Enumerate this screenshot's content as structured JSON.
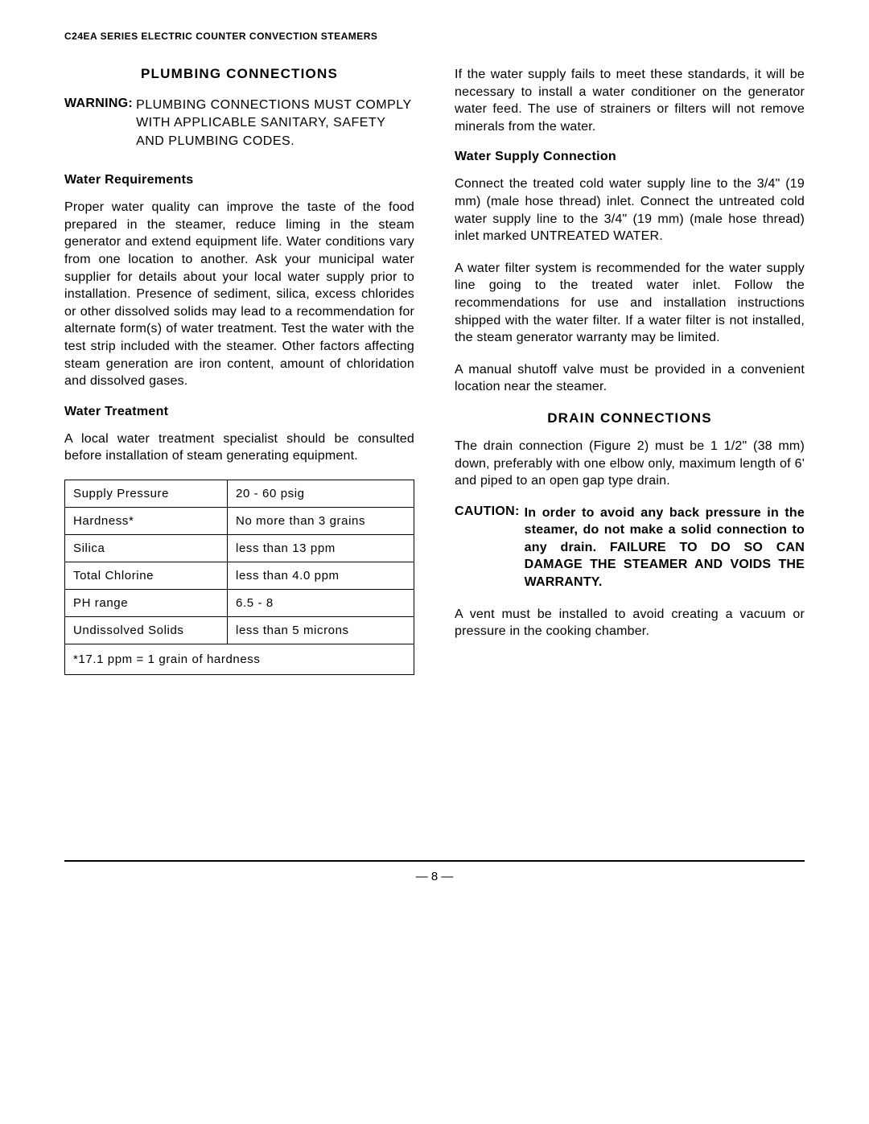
{
  "header": {
    "productLine": "C24EA SERIES ELECTRIC COUNTER CONVECTION STEAMERS"
  },
  "leftColumn": {
    "plumbingTitle": "PLUMBING CONNECTIONS",
    "warningLabel": "WARNING:",
    "warningText": "PLUMBING CONNECTIONS MUST COMPLY WITH APPLICABLE SANITARY, SAFETY AND PLUMBING CODES.",
    "waterReqHeading": "Water Requirements",
    "waterReqText": "Proper water quality can improve the taste of the food prepared in the steamer, reduce liming in the steam generator and extend equipment life. Water conditions vary from one location to another. Ask your municipal water supplier for details about your local water supply prior to installation. Presence of sediment, silica, excess chlorides or other dissolved solids may lead to a recommendation for alternate form(s) of water treatment. Test the water with the test strip included with the steamer. Other factors affecting steam generation are iron content, amount of chloridation and dissolved gases.",
    "waterTreatHeading": "Water Treatment",
    "waterTreatText": "A local water treatment specialist should be consulted before installation of steam generating equipment.",
    "table": {
      "rows": [
        [
          "Supply Pressure",
          "20 - 60 psig"
        ],
        [
          "Hardness*",
          "No more than 3 grains"
        ],
        [
          "Silica",
          "less than 13 ppm"
        ],
        [
          "Total Chlorine",
          "less than 4.0 ppm"
        ],
        [
          "PH range",
          "6.5 - 8"
        ],
        [
          "Undissolved Solids",
          "less than 5 microns"
        ]
      ],
      "footnote": "*17.1 ppm = 1 grain of hardness"
    }
  },
  "rightColumn": {
    "introText": "If the water supply fails to meet these standards, it will be necessary to install a water conditioner on the generator water feed. The use of strainers or filters will not remove minerals from the water.",
    "supplyHeading": "Water Supply Connection",
    "supplyText1": "Connect the treated cold water supply line to the 3/4\" (19 mm) (male hose thread) inlet. Connect the untreated cold water supply line to the 3/4\" (19 mm) (male hose thread) inlet marked UNTREATED WATER.",
    "supplyText2": "A water filter system is recommended for the water supply line going to the treated water inlet. Follow the recommendations for use and installation instructions shipped with the water filter. If a water filter is not installed, the steam generator warranty may be limited.",
    "supplyText3": "A manual shutoff valve must be provided in a convenient location near the steamer.",
    "drainTitle": "DRAIN CONNECTIONS",
    "drainText": "The drain connection (Figure 2) must be 1 1/2\" (38 mm) down, preferably with one elbow only, maximum length of 6' and piped to an open gap type drain.",
    "cautionLabel": "CAUTION:",
    "cautionText": "In order to avoid any back pressure in the steamer, do not make a solid connection to any drain. FAILURE TO DO SO CAN DAMAGE THE STEAMER AND VOIDS THE WARRANTY.",
    "ventText": "A vent must be installed to avoid creating a vacuum or pressure in the cooking chamber."
  },
  "footer": {
    "pageNumber": "— 8 —"
  }
}
